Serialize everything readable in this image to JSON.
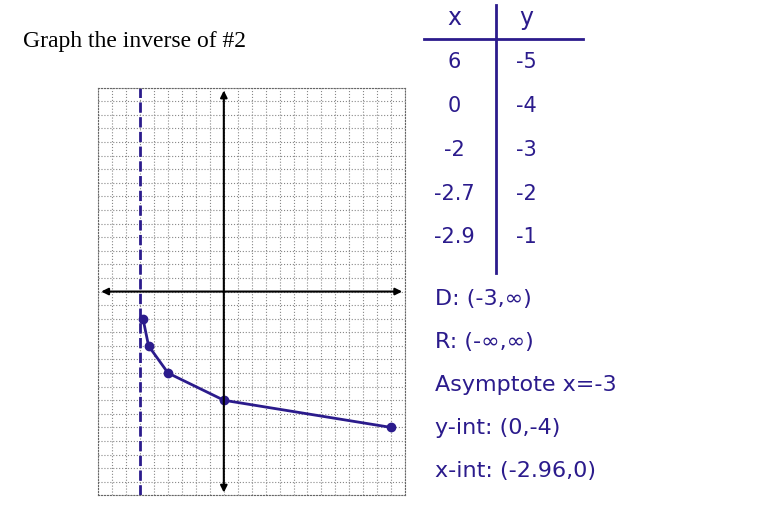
{
  "chart_data": {
    "type": "line",
    "title": "Graph the inverse of #2",
    "x": [
      -2.9,
      -2.7,
      -2,
      0,
      6
    ],
    "values": [
      -1,
      -2,
      -3,
      -4,
      -5
    ],
    "color": "#2b1b8c",
    "marker": "o",
    "xlim": [
      -4.5,
      6.5
    ],
    "ylim": [
      -7.5,
      7.5
    ],
    "xticks": [
      -4.5,
      -4,
      -3.5,
      -3,
      -2.5,
      -2,
      -1.5,
      -1,
      -0.5,
      0,
      0.5,
      1,
      1.5,
      2,
      2.5,
      3,
      3.5,
      4,
      4.5,
      5,
      5.5,
      6,
      6.5
    ],
    "yticks": [
      -7.5,
      -7,
      -6.5,
      -6,
      -5.5,
      -5,
      -4.5,
      -4,
      -3.5,
      -3,
      -2.5,
      -2,
      -1.5,
      -1,
      -0.5,
      0,
      0.5,
      1,
      1.5,
      2,
      2.5,
      3,
      3.5,
      4,
      4.5,
      5,
      5.5,
      6,
      6.5,
      7,
      7.5
    ],
    "grid": true,
    "tick_labels": false,
    "asymptote_x": -3,
    "table": {
      "headers": [
        "x",
        "y"
      ],
      "x": [
        6,
        0,
        -2,
        -2.7,
        -2.9
      ],
      "y": [
        -5,
        -4,
        -3,
        -2,
        -1
      ]
    },
    "annotations": [
      "D: (-3,∞)",
      "R: (-∞,∞)",
      "Asymptote x=-3",
      "y-int: (0,-4)",
      "x-int: (-2.96,0)"
    ]
  }
}
